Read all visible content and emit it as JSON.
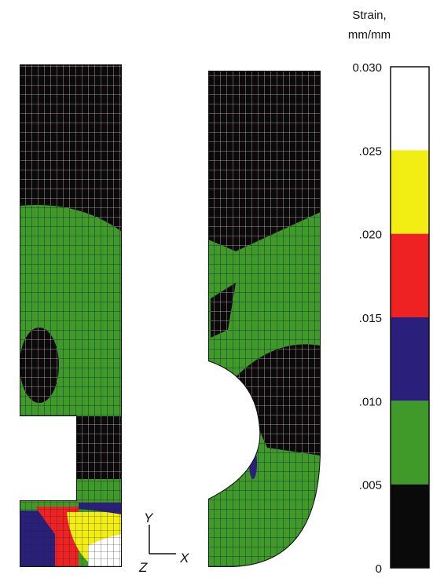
{
  "colorbar": {
    "title": [
      "Strain,",
      "mm/mm"
    ],
    "ticks": [
      {
        "value": 0.03,
        "label": "0.030"
      },
      {
        "value": 0.025,
        "label": ".025"
      },
      {
        "value": 0.02,
        "label": ".020"
      },
      {
        "value": 0.015,
        "label": ".015"
      },
      {
        "value": 0.01,
        "label": ".010"
      },
      {
        "value": 0.005,
        "label": ".005"
      },
      0
    ],
    "colors": [
      "#ffffff",
      "#f2ee14",
      "#ee2222",
      "#2a1f7a",
      "#3f9a2a",
      "#0a0a0a"
    ]
  },
  "axes": {
    "y": "Y",
    "x": "X",
    "z": "Z"
  }
}
